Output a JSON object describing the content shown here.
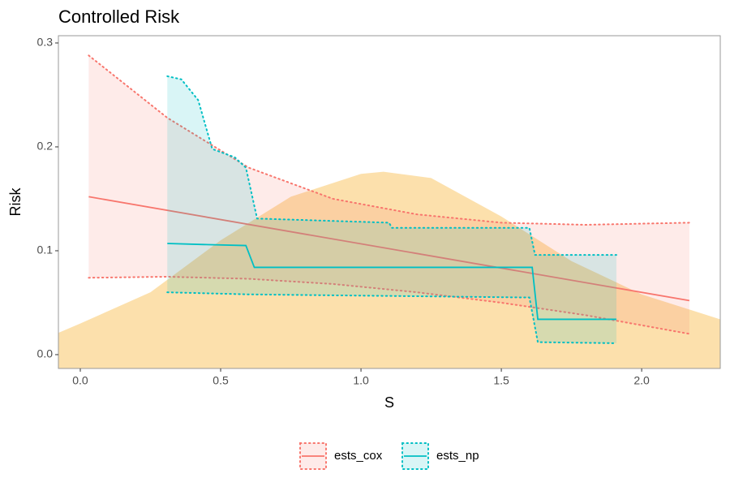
{
  "chart_data": {
    "type": "line",
    "title": "Controlled Risk",
    "x_label": "S",
    "y_label": "Risk",
    "xlim": [
      -0.078,
      2.28
    ],
    "ylim": [
      -0.0133,
      0.307
    ],
    "xticks": [
      {
        "value": 0,
        "label": "0.0"
      },
      0.5,
      {
        "value": 1,
        "label": "1.0"
      },
      1.5,
      {
        "value": 2,
        "label": "2.0"
      }
    ],
    "yticks": [
      {
        "value": 0,
        "label": "0.0"
      },
      0.1,
      0.2,
      0.3
    ],
    "legend_position": "bottom",
    "density": {
      "color": "#f9c25a",
      "x": [
        -0.078,
        0,
        0.25,
        0.5,
        0.75,
        1.0,
        1.08,
        1.25,
        1.5,
        1.75,
        2.0,
        2.28
      ],
      "values": [
        0.021,
        0.03,
        0.06,
        0.11,
        0.152,
        0.174,
        0.176,
        0.17,
        0.133,
        0.09,
        0.058,
        0.034
      ]
    },
    "series": [
      {
        "name": "ests_cox",
        "color": "#f8766d",
        "x": [
          0.03,
          2.17
        ],
        "values": [
          0.152,
          0.052
        ],
        "upper": {
          "x": [
            0.03,
            0.31,
            0.6,
            0.9,
            1.2,
            1.5,
            1.8,
            2.17
          ],
          "values": [
            0.288,
            0.228,
            0.18,
            0.15,
            0.135,
            0.127,
            0.125,
            0.127
          ]
        },
        "lower": {
          "x": [
            0.03,
            0.31,
            0.6,
            0.9,
            1.2,
            1.5,
            1.8,
            2.17
          ],
          "values": [
            0.074,
            0.075,
            0.073,
            0.068,
            0.06,
            0.05,
            0.038,
            0.02
          ]
        }
      },
      {
        "name": "ests_np",
        "color": "#00bfc4",
        "x": [
          0.31,
          0.44,
          0.59,
          0.62,
          1.61,
          1.63,
          1.91
        ],
        "values": [
          0.107,
          0.106,
          0.105,
          0.084,
          0.084,
          0.034,
          0.034
        ],
        "upper": {
          "x": [
            0.31,
            0.36,
            0.42,
            0.47,
            0.55,
            0.59,
            0.63,
            1.1,
            1.11,
            1.6,
            1.62,
            1.91
          ],
          "values": [
            0.268,
            0.265,
            0.245,
            0.198,
            0.19,
            0.18,
            0.131,
            0.127,
            0.122,
            0.122,
            0.096,
            0.096
          ]
        },
        "lower": {
          "x": [
            0.31,
            0.6,
            1.6,
            1.63,
            1.91
          ],
          "values": [
            0.06,
            0.058,
            0.055,
            0.012,
            0.011
          ]
        }
      }
    ]
  }
}
